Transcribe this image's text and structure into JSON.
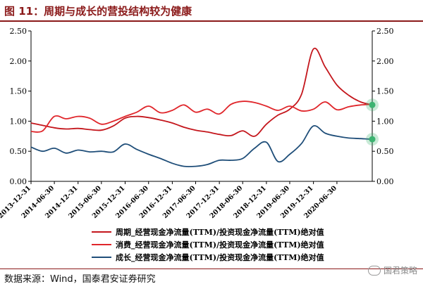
{
  "header": {
    "title": "图 11：周期与成长的营投结构较为健康"
  },
  "footer": {
    "source": "数据来源：Wind，国泰君安证券研究",
    "watermark": "国君策略"
  },
  "colors": {
    "cycle": "#c4161c",
    "consumer": "#e0262b",
    "growth": "#1f4e79",
    "accent": "#8b1a1a",
    "highlight": "#3cb371"
  },
  "chart_data": {
    "type": "line",
    "title": "",
    "ylim": [
      0,
      2.5
    ],
    "y_ticks": [
      "0.00",
      "0.50",
      "1.00",
      "1.50",
      "2.00",
      "2.50"
    ],
    "x_range": [
      "2013-12-31",
      "2021-03-31"
    ],
    "x_tick_labels": [
      "2013-12-31",
      "2014-06-30",
      "2014-12-31",
      "2015-06-30",
      "2015-12-31",
      "2016-06-30",
      "2016-12-31",
      "2017-06-30",
      "2017-12-31",
      "2018-06-30",
      "2018-12-31",
      "2019-06-30",
      "2019-12-31",
      "2020-06-30"
    ],
    "legend_position": "bottom",
    "series": [
      {
        "name": "周期_经营现金净流量(TTM)/投资现金净流量(TTM)绝对值",
        "color_key": "cycle",
        "x": [
          "2013-12-31",
          "2014-03-31",
          "2014-06-30",
          "2014-09-30",
          "2014-12-31",
          "2015-03-31",
          "2015-06-30",
          "2015-09-30",
          "2015-12-31",
          "2016-03-31",
          "2016-06-30",
          "2016-09-30",
          "2016-12-31",
          "2017-03-31",
          "2017-06-30",
          "2017-09-30",
          "2017-12-31",
          "2018-03-31",
          "2018-06-30",
          "2018-09-30",
          "2018-12-31",
          "2019-03-31",
          "2019-06-30",
          "2019-09-30",
          "2019-12-31",
          "2020-03-31",
          "2020-06-30",
          "2020-09-30",
          "2020-12-31",
          "2021-03-31"
        ],
        "values": [
          0.97,
          0.93,
          0.89,
          0.87,
          0.88,
          0.86,
          0.85,
          0.92,
          1.05,
          1.08,
          1.06,
          1.02,
          0.97,
          0.9,
          0.85,
          0.82,
          0.78,
          0.76,
          0.84,
          0.75,
          0.95,
          1.1,
          1.2,
          1.45,
          2.2,
          1.9,
          1.6,
          1.43,
          1.32,
          1.27
        ]
      },
      {
        "name": "消费_经营现金净流量(TTM)/投资现金净流量(TTM)绝对值",
        "color_key": "consumer",
        "x": [
          "2013-12-31",
          "2014-03-31",
          "2014-06-30",
          "2014-09-30",
          "2014-12-31",
          "2015-03-31",
          "2015-06-30",
          "2015-09-30",
          "2015-12-31",
          "2016-03-31",
          "2016-06-30",
          "2016-09-30",
          "2016-12-31",
          "2017-03-31",
          "2017-06-30",
          "2017-09-30",
          "2017-12-31",
          "2018-03-31",
          "2018-06-30",
          "2018-09-30",
          "2018-12-31",
          "2019-03-31",
          "2019-06-30",
          "2019-09-30",
          "2019-12-31",
          "2020-03-31",
          "2020-06-30",
          "2020-09-30",
          "2020-12-31",
          "2021-03-31"
        ],
        "values": [
          0.83,
          0.84,
          1.08,
          1.04,
          1.08,
          1.05,
          0.95,
          1.0,
          1.08,
          1.15,
          1.25,
          1.14,
          1.18,
          1.27,
          1.15,
          1.2,
          1.12,
          1.28,
          1.33,
          1.31,
          1.25,
          1.18,
          1.25,
          1.17,
          1.2,
          1.32,
          1.19,
          1.24,
          1.27,
          1.28
        ]
      },
      {
        "name": "成长_经营现金净流量(TTM)/投资现金净流量(TTM)绝对值",
        "color_key": "growth",
        "x": [
          "2013-12-31",
          "2014-03-31",
          "2014-06-30",
          "2014-09-30",
          "2014-12-31",
          "2015-03-31",
          "2015-06-30",
          "2015-09-30",
          "2015-12-31",
          "2016-03-31",
          "2016-06-30",
          "2016-09-30",
          "2016-12-31",
          "2017-03-31",
          "2017-06-30",
          "2017-09-30",
          "2017-12-31",
          "2018-03-31",
          "2018-06-30",
          "2018-09-30",
          "2018-12-31",
          "2019-03-31",
          "2019-06-30",
          "2019-09-30",
          "2019-12-31",
          "2020-03-31",
          "2020-06-30",
          "2020-09-30",
          "2020-12-31",
          "2021-03-31"
        ],
        "values": [
          0.57,
          0.5,
          0.55,
          0.47,
          0.52,
          0.49,
          0.5,
          0.49,
          0.62,
          0.53,
          0.45,
          0.38,
          0.3,
          0.25,
          0.25,
          0.28,
          0.35,
          0.35,
          0.38,
          0.55,
          0.65,
          0.33,
          0.45,
          0.63,
          0.92,
          0.8,
          0.75,
          0.72,
          0.71,
          0.7
        ]
      }
    ]
  }
}
